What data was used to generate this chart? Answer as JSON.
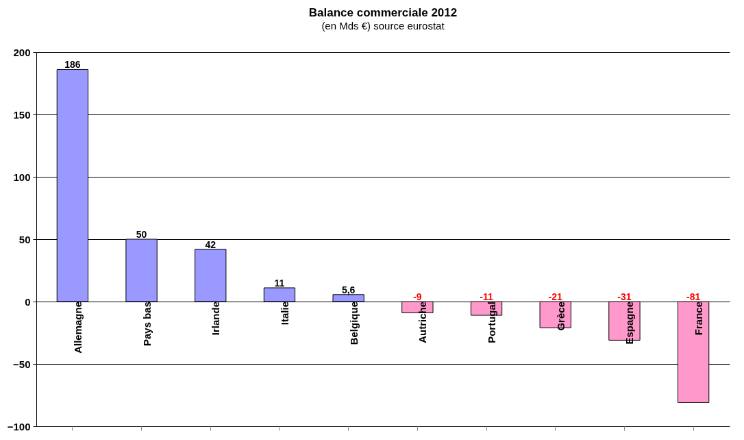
{
  "chart_data": {
    "type": "bar",
    "title": "Balance commerciale 2012",
    "subtitle": "(en Mds €) source eurostat",
    "categories": [
      "Allemagne",
      "Pays bas",
      "Irlande",
      "Italie",
      "Belgique",
      "Autriche",
      "Portugal",
      "Grèce",
      "Espagne",
      "France"
    ],
    "values": [
      186,
      50,
      42,
      11,
      5.6,
      -9,
      -11,
      -21,
      -31,
      -81
    ],
    "colors": [
      "#9999ff",
      "#9999ff",
      "#9999ff",
      "#9999ff",
      "#9999ff",
      "#ff99cc",
      "#ff99cc",
      "#ff99cc",
      "#ff99cc",
      "#ff99cc"
    ],
    "value_labels": [
      "186",
      "50",
      "42",
      "11",
      "5,6",
      "-9",
      "-11",
      "-21",
      "-31",
      "-81"
    ],
    "ylim": [
      -100,
      200
    ],
    "yticks": [
      -100,
      -50,
      0,
      50,
      100,
      150,
      200
    ],
    "grid": "y"
  }
}
